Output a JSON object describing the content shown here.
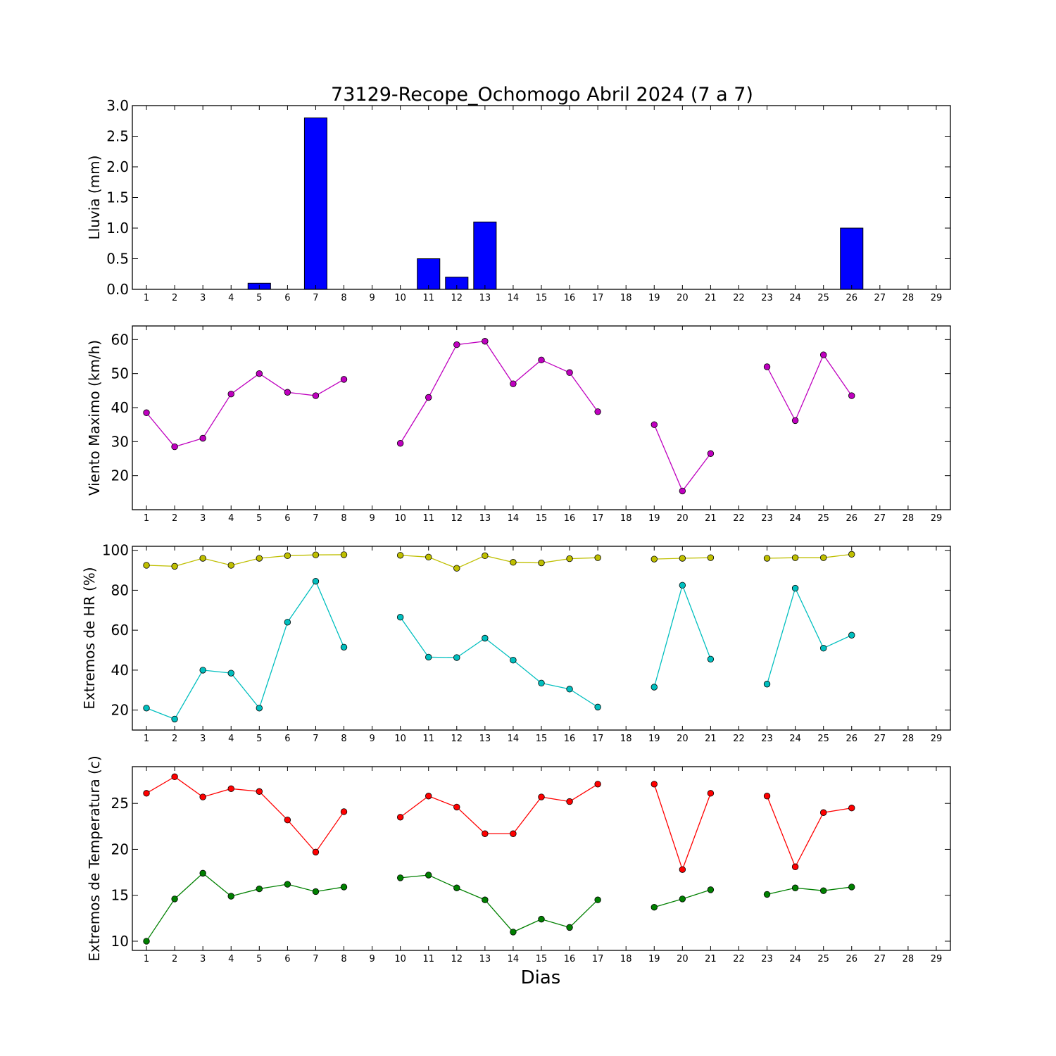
{
  "chart_data": {
    "title": "73129-Recope_Ochomogo Abril 2024  (7 a 7)",
    "xlabel": "Dias",
    "days": [
      1,
      2,
      3,
      4,
      5,
      6,
      7,
      8,
      9,
      10,
      11,
      12,
      13,
      14,
      15,
      16,
      17,
      18,
      19,
      20,
      21,
      22,
      23,
      24,
      25,
      26,
      27,
      28,
      29
    ],
    "xlim": [
      0.5,
      29.5
    ],
    "panels": [
      {
        "type": "bar",
        "ylabel": "Lluvia (mm)",
        "ylim": [
          0,
          3.0
        ],
        "yticks": [
          0.0,
          0.5,
          1.0,
          1.5,
          2.0,
          2.5,
          3.0
        ],
        "ytick_labels": [
          "0.0",
          "0.5",
          "1.0",
          "1.5",
          "2.0",
          "2.5",
          "3.0"
        ],
        "series": [
          {
            "color": "#0000ff",
            "values": [
              0,
              0,
              0,
              0,
              0.1,
              0,
              2.8,
              0,
              0,
              0,
              0.5,
              0.2,
              1.1,
              0,
              0,
              0,
              0,
              0,
              0,
              0,
              0,
              0,
              0,
              0,
              0,
              1.0,
              0,
              0,
              0
            ]
          }
        ]
      },
      {
        "type": "line",
        "ylabel": "Viento Maximo (km/h)",
        "ylim": [
          10,
          64
        ],
        "yticks": [
          20,
          30,
          40,
          50,
          60
        ],
        "ytick_labels": [
          "20",
          "30",
          "40",
          "50",
          "60"
        ],
        "series": [
          {
            "color": "#bf00bf",
            "values": [
              38.5,
              28.5,
              31,
              44,
              50,
              44.5,
              43.5,
              48.3,
              null,
              29.5,
              43,
              58.5,
              59.5,
              47,
              54,
              50.3,
              38.8,
              null,
              35,
              15.5,
              26.5,
              null,
              52,
              36.2,
              55.5,
              43.5,
              null,
              null,
              null
            ]
          }
        ]
      },
      {
        "type": "line",
        "ylabel": "Extremos de HR (%)",
        "ylim": [
          10,
          102
        ],
        "yticks": [
          20,
          40,
          60,
          80,
          100
        ],
        "ytick_labels": [
          "20",
          "40",
          "60",
          "80",
          "100"
        ],
        "series": [
          {
            "color": "#bfbf00",
            "values": [
              92.5,
              92,
              96,
              92.5,
              96,
              97.3,
              97.7,
              97.8,
              null,
              97.5,
              96.6,
              91,
              97.3,
              94,
              93.7,
              95.8,
              96.3,
              null,
              95.6,
              96,
              96.3,
              null,
              96,
              96.3,
              96.3,
              98,
              null,
              null,
              null
            ]
          },
          {
            "color": "#00bfbf",
            "values": [
              21,
              15.5,
              40,
              38.5,
              21,
              64,
              84.5,
              51.5,
              null,
              66.5,
              46.5,
              46.3,
              56,
              45,
              33.5,
              30.5,
              21.5,
              null,
              31.5,
              82.5,
              45.5,
              null,
              33,
              81,
              51,
              57.5,
              null,
              null,
              null
            ]
          }
        ]
      },
      {
        "type": "line",
        "ylabel": "Extremos de Temperatura (c)",
        "ylim": [
          9,
          29
        ],
        "yticks": [
          10,
          15,
          20,
          25
        ],
        "ytick_labels": [
          "10",
          "15",
          "20",
          "25"
        ],
        "series": [
          {
            "color": "#ff0000",
            "values": [
              26.1,
              27.9,
              25.7,
              26.6,
              26.3,
              23.2,
              19.7,
              24.1,
              null,
              23.5,
              25.8,
              24.6,
              21.7,
              21.7,
              25.7,
              25.2,
              27.1,
              null,
              27.1,
              17.8,
              26.1,
              null,
              25.8,
              18.1,
              24.0,
              24.5,
              null,
              null,
              null
            ]
          },
          {
            "color": "#008000",
            "values": [
              10,
              14.6,
              17.4,
              14.9,
              15.7,
              16.2,
              15.4,
              15.9,
              null,
              16.9,
              17.2,
              15.8,
              14.5,
              11,
              12.4,
              11.5,
              14.5,
              null,
              13.7,
              14.6,
              15.6,
              null,
              15.1,
              15.8,
              15.5,
              15.9,
              null,
              null,
              null
            ]
          }
        ]
      }
    ]
  }
}
